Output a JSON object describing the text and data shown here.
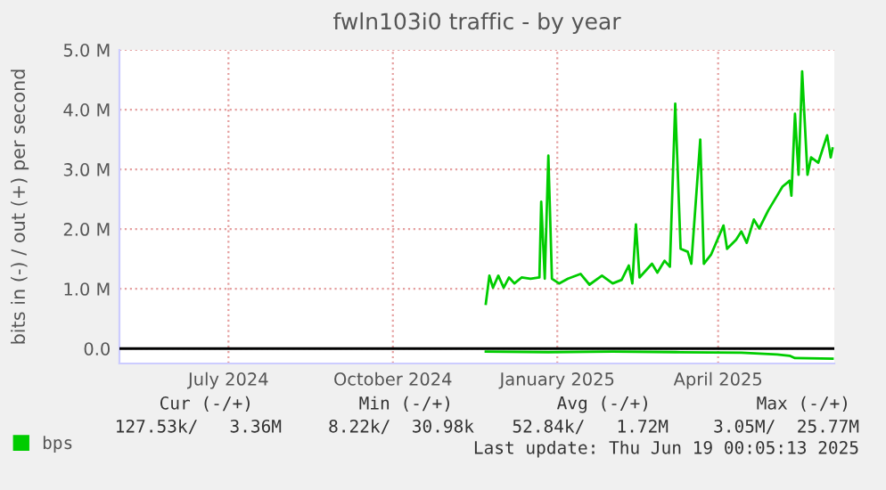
{
  "chart_data": {
    "type": "line",
    "title": "fwln103i0 traffic - by year",
    "ylabel": "bits in (-) / out (+) per second",
    "xlim": [
      "2024-05-15",
      "2025-06-19"
    ],
    "xticks": [
      {
        "value": "2024-07-15",
        "label": "July 2024"
      },
      {
        "value": "2024-10-15",
        "label": "October 2024"
      },
      {
        "value": "2025-01-15",
        "label": "January 2025"
      },
      {
        "value": "2025-04-15",
        "label": "April 2025"
      }
    ],
    "ylim": [
      -0.25,
      5.0
    ],
    "yticks": [
      {
        "value": 0,
        "label": "0.0"
      },
      {
        "value": 1,
        "label": "1.0 M"
      },
      {
        "value": 2,
        "label": "2.0 M"
      },
      {
        "value": 3,
        "label": "3.0 M"
      },
      {
        "value": 4,
        "label": "4.0 M"
      },
      {
        "value": 5,
        "label": "5.0 M"
      }
    ],
    "grid": true,
    "legend": "bottom left",
    "ref_lines": [
      {
        "axis": "y",
        "value": 0,
        "color": "#000000"
      }
    ],
    "series": [
      {
        "name": "bps",
        "color": "#00cc00",
        "x": [
          "2024-12-06",
          "2024-12-08",
          "2024-12-10",
          "2024-12-13",
          "2024-12-16",
          "2024-12-19",
          "2024-12-22",
          "2024-12-26",
          "2024-12-31",
          "2025-01-05",
          "2025-01-06",
          "2025-01-08",
          "2025-01-10",
          "2025-01-12",
          "2025-01-16",
          "2025-01-21",
          "2025-01-28",
          "2025-02-02",
          "2025-02-09",
          "2025-02-15",
          "2025-02-20",
          "2025-02-24",
          "2025-02-26",
          "2025-02-28",
          "2025-03-02",
          "2025-03-09",
          "2025-03-12",
          "2025-03-16",
          "2025-03-19",
          "2025-03-22",
          "2025-03-25",
          "2025-03-29",
          "2025-03-31",
          "2025-04-05",
          "2025-04-07",
          "2025-04-11",
          "2025-04-18",
          "2025-04-20",
          "2025-04-25",
          "2025-04-28",
          "2025-05-01",
          "2025-05-05",
          "2025-05-08",
          "2025-05-13",
          "2025-05-18",
          "2025-05-21",
          "2025-05-25",
          "2025-05-26",
          "2025-05-28",
          "2025-05-30",
          "2025-06-01",
          "2025-06-04",
          "2025-06-06",
          "2025-06-10",
          "2025-06-15",
          "2025-06-17",
          "2025-06-18"
        ],
        "values": [
          0.75,
          1.22,
          1.02,
          1.22,
          1.02,
          1.19,
          1.09,
          1.19,
          1.17,
          1.19,
          2.46,
          1.17,
          3.23,
          1.17,
          1.09,
          1.17,
          1.25,
          1.07,
          1.22,
          1.09,
          1.15,
          1.39,
          1.09,
          2.08,
          1.19,
          1.42,
          1.27,
          1.47,
          1.37,
          4.1,
          1.67,
          1.62,
          1.42,
          3.5,
          1.42,
          1.57,
          2.06,
          1.67,
          1.82,
          1.96,
          1.77,
          2.16,
          2.01,
          2.31,
          2.56,
          2.71,
          2.81,
          2.56,
          3.93,
          2.91,
          4.64,
          2.91,
          3.2,
          3.11,
          3.57,
          3.2,
          3.35
        ]
      },
      {
        "color": "#00cc00",
        "x": [
          "2024-12-06",
          "2025-01-10",
          "2025-02-15",
          "2025-03-22",
          "2025-04-28",
          "2025-05-18",
          "2025-05-25",
          "2025-05-28",
          "2025-06-18"
        ],
        "values": [
          -0.05,
          -0.06,
          -0.05,
          -0.06,
          -0.07,
          -0.1,
          -0.12,
          -0.16,
          -0.17
        ]
      }
    ],
    "annotations": [
      "Cur (-/+)",
      "Min (-/+)",
      "Avg (-/+)",
      "Max (-/+)",
      "127.53k/   3.36M",
      "8.22k/  30.98k",
      "52.84k/   1.72M",
      "3.05M/  25.77M",
      "Last update: Thu Jun 19 00:05:13 2025"
    ]
  }
}
